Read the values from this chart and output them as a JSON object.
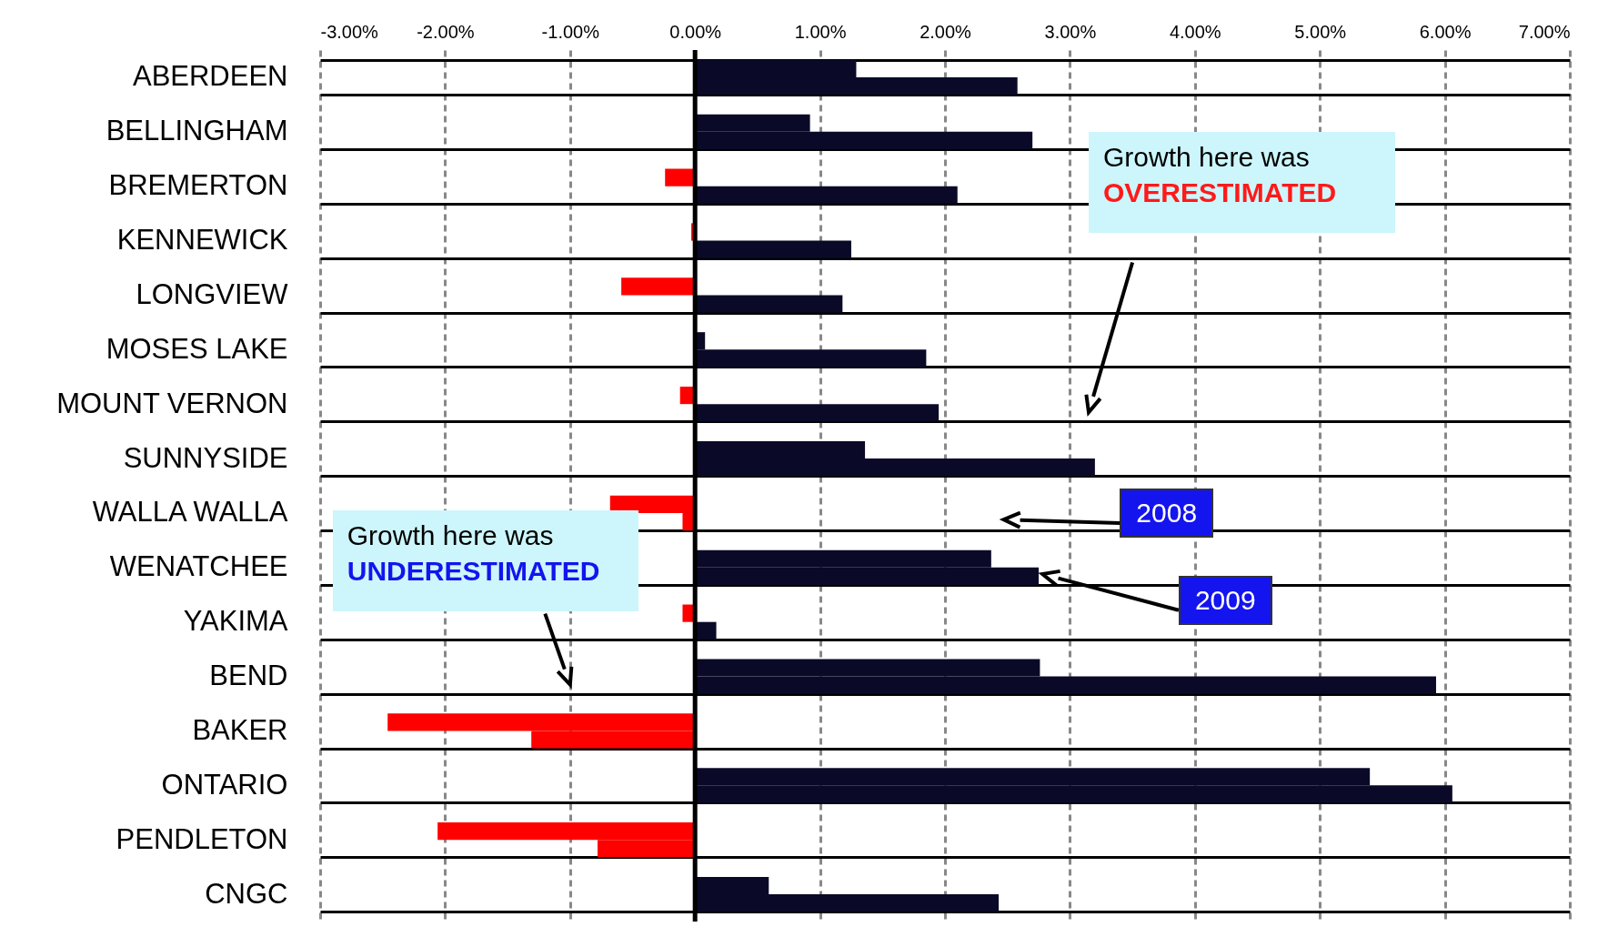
{
  "chart_data": {
    "type": "bar",
    "orientation": "horizontal",
    "categories": [
      "ABERDEEN",
      "BELLINGHAM",
      "BREMERTON",
      "KENNEWICK",
      "LONGVIEW",
      "MOSES LAKE",
      "MOUNT VERNON",
      "SUNNYSIDE",
      "WALLA WALLA",
      "WENATCHEE",
      "YAKIMA",
      "BEND",
      "BAKER",
      "ONTARIO",
      "PENDLETON",
      "CNGC"
    ],
    "series": [
      {
        "name": "2008",
        "values": [
          1.29,
          0.92,
          -0.24,
          -0.03,
          -0.59,
          0.08,
          -0.12,
          1.36,
          -0.68,
          2.37,
          -0.1,
          2.76,
          -2.46,
          5.4,
          -2.06,
          0.59
        ],
        "colors": [
          "#0a0a28",
          "#0a0a28",
          "#ff0000",
          "#ff0000",
          "#ff0000",
          "#0a0a28",
          "#ff0000",
          "#0a0a28",
          "#ff0000",
          "#0a0a28",
          "#ff0000",
          "#0a0a28",
          "#ff0000",
          "#0a0a28",
          "#ff0000",
          "#0a0a28"
        ]
      },
      {
        "name": "2009",
        "values": [
          2.58,
          2.7,
          2.1,
          1.25,
          1.18,
          1.85,
          1.95,
          3.2,
          -0.1,
          2.75,
          0.17,
          5.93,
          -1.31,
          6.06,
          -0.78,
          2.43
        ],
        "colors": [
          "#0a0a28",
          "#0a0a28",
          "#0a0a28",
          "#0a0a28",
          "#0a0a28",
          "#0a0a28",
          "#0a0a28",
          "#0a0a28",
          "#ff0000",
          "#0a0a28",
          "#0a0a28",
          "#0a0a28",
          "#ff0000",
          "#0a0a28",
          "#ff0000",
          "#0a0a28"
        ]
      }
    ],
    "xlim": [
      -3,
      7
    ],
    "xticks": [
      {
        "value": -3,
        "label": "-3.00%"
      },
      {
        "value": -2,
        "label": "-2.00%"
      },
      {
        "value": -1,
        "label": "-1.00%"
      },
      {
        "value": 0,
        "label": "0.00%"
      },
      {
        "value": 1,
        "label": "1.00%"
      },
      {
        "value": 2,
        "label": "2.00%"
      },
      {
        "value": 3,
        "label": "3.00%"
      },
      {
        "value": 4,
        "label": "4.00%"
      },
      {
        "value": 5,
        "label": "5.00%"
      },
      {
        "value": 6,
        "label": "6.00%"
      },
      {
        "value": 7,
        "label": "7.00%"
      }
    ],
    "ref_lines": [
      {
        "axis": "x",
        "value": 0,
        "color": "#000000"
      }
    ],
    "grid": true,
    "annotations": [
      "Growth here was OVERESTIMATED",
      "Growth here was UNDERESTIMATED"
    ]
  }
}
